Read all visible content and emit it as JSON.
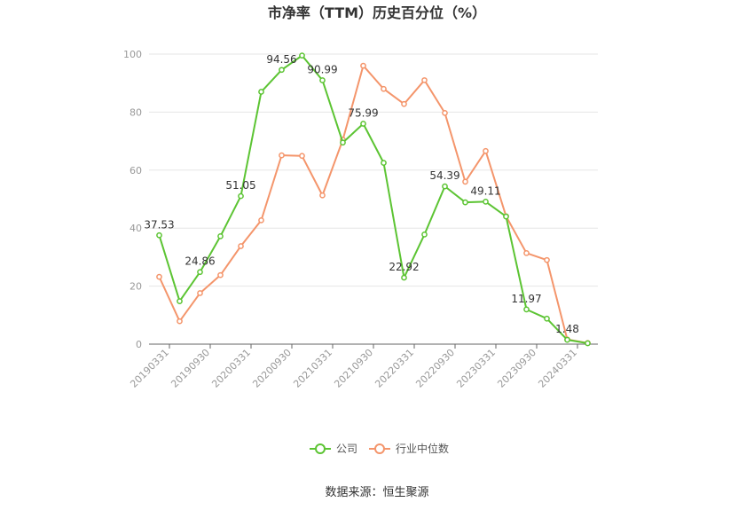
{
  "chart_data": {
    "type": "line",
    "title": "市净率（TTM）历史百分位（%）",
    "x": [
      "20190331",
      "20190630",
      "20190930",
      "20191231",
      "20200331",
      "20200630",
      "20200930",
      "20201231",
      "20210331",
      "20210630",
      "20210930",
      "20211231",
      "20220331",
      "20220630",
      "20220930",
      "20221231",
      "20230331",
      "20230630",
      "20230930",
      "20231231",
      "20240331",
      "20240630"
    ],
    "x_tick_labels": [
      "20190331",
      "20190930",
      "20200331",
      "20200930",
      "20210331",
      "20210930",
      "20220331",
      "20220930",
      "20230331",
      "20230930",
      "20240331"
    ],
    "ylim": [
      0,
      100
    ],
    "y_ticks": [
      0,
      20,
      40,
      60,
      80,
      100
    ],
    "grid": true,
    "legend_position": "bottom",
    "series": [
      {
        "name": "公司",
        "color": "#5cc433",
        "values": [
          37.53,
          14.8,
          24.86,
          37.2,
          51.05,
          87.0,
          94.56,
          99.5,
          90.99,
          69.5,
          75.99,
          62.5,
          22.92,
          37.8,
          54.39,
          48.9,
          49.11,
          44.0,
          11.97,
          8.8,
          1.48,
          0.3
        ],
        "labels": {
          "0": "37.53",
          "2": "24.86",
          "4": "51.05",
          "6": "94.56",
          "8": "90.99",
          "10": "75.99",
          "12": "22.92",
          "14": "54.39",
          "16": "49.11",
          "18": "11.97",
          "20": "1.48"
        }
      },
      {
        "name": "行业中位数",
        "color": "#f4956b",
        "values": [
          23.2,
          7.9,
          17.6,
          23.8,
          33.8,
          42.7,
          65.1,
          64.9,
          51.3,
          70.5,
          96.0,
          88.0,
          82.8,
          91.0,
          79.7,
          56.0,
          66.6,
          44.1,
          31.4,
          29.0,
          1.6,
          0.4
        ]
      }
    ]
  },
  "footer": {
    "source": "数据来源：恒生聚源"
  }
}
